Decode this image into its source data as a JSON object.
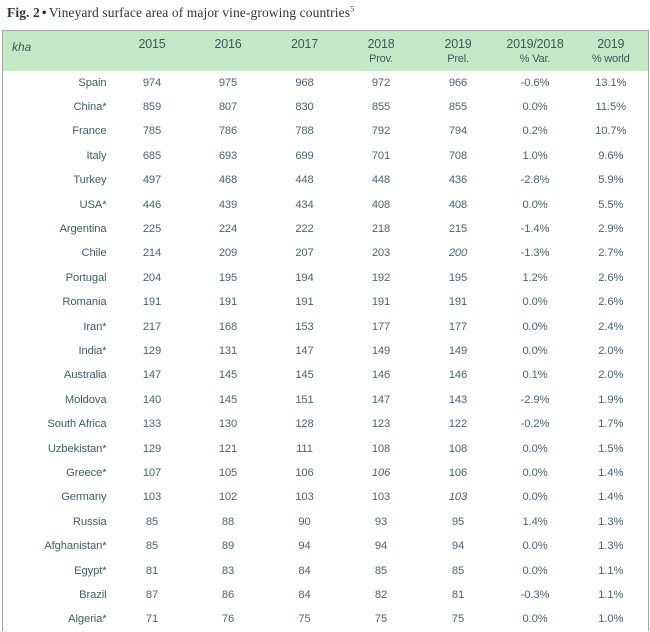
{
  "title": {
    "fig_label": "Fig. 2",
    "bullet": "•",
    "text": "Vineyard surface area of major vine-growing countries",
    "footnote_mark": "5"
  },
  "colors": {
    "header_bg": "#c5e8c6",
    "header_text": "#3b5a58",
    "body_text": "#4c6470",
    "border": "#a2a7a2"
  },
  "chart_data": {
    "type": "table",
    "title": "Fig. 2 • Vineyard surface area of major vine-growing countries",
    "unit_label": "kha",
    "header": [
      {
        "line1": "2015",
        "line2": ""
      },
      {
        "line1": "2016",
        "line2": ""
      },
      {
        "line1": "2017",
        "line2": ""
      },
      {
        "line1": "2018",
        "line2": "Prov."
      },
      {
        "line1": "2019",
        "line2": "Prel."
      },
      {
        "line1": "2019/2018",
        "line2": "% Var."
      },
      {
        "line1": "2019",
        "line2": "% world"
      }
    ],
    "rows": [
      {
        "country": "Spain",
        "values": [
          "974",
          "975",
          "968",
          "972",
          "966",
          "-0.6%",
          "13.1%"
        ],
        "italic": []
      },
      {
        "country": "China*",
        "values": [
          "859",
          "807",
          "830",
          "855",
          "855",
          "0.0%",
          "11.5%"
        ],
        "italic": []
      },
      {
        "country": "France",
        "values": [
          "785",
          "786",
          "788",
          "792",
          "794",
          "0.2%",
          "10.7%"
        ],
        "italic": []
      },
      {
        "country": "Italy",
        "values": [
          "685",
          "693",
          "699",
          "701",
          "708",
          "1.0%",
          "9.6%"
        ],
        "italic": []
      },
      {
        "country": "Turkey",
        "values": [
          "497",
          "468",
          "448",
          "448",
          "436",
          "-2.8%",
          "5.9%"
        ],
        "italic": []
      },
      {
        "country": "USA*",
        "values": [
          "446",
          "439",
          "434",
          "408",
          "408",
          "0.0%",
          "5.5%"
        ],
        "italic": []
      },
      {
        "country": "Argentina",
        "values": [
          "225",
          "224",
          "222",
          "218",
          "215",
          "-1.4%",
          "2.9%"
        ],
        "italic": []
      },
      {
        "country": "Chile",
        "values": [
          "214",
          "209",
          "207",
          "203",
          "200",
          "-1.3%",
          "2.7%"
        ],
        "italic": [
          4
        ]
      },
      {
        "country": "Portugal",
        "values": [
          "204",
          "195",
          "194",
          "192",
          "195",
          "1.2%",
          "2.6%"
        ],
        "italic": []
      },
      {
        "country": "Romania",
        "values": [
          "191",
          "191",
          "191",
          "191",
          "191",
          "0.0%",
          "2.6%"
        ],
        "italic": []
      },
      {
        "country": "Iran*",
        "values": [
          "217",
          "168",
          "153",
          "177",
          "177",
          "0.0%",
          "2.4%"
        ],
        "italic": []
      },
      {
        "country": "India*",
        "values": [
          "129",
          "131",
          "147",
          "149",
          "149",
          "0.0%",
          "2.0%"
        ],
        "italic": []
      },
      {
        "country": "Australia",
        "values": [
          "147",
          "145",
          "145",
          "146",
          "146",
          "0.1%",
          "2.0%"
        ],
        "italic": []
      },
      {
        "country": "Moldova",
        "values": [
          "140",
          "145",
          "151",
          "147",
          "143",
          "-2.9%",
          "1.9%"
        ],
        "italic": []
      },
      {
        "country": "South Africa",
        "values": [
          "133",
          "130",
          "128",
          "123",
          "122",
          "-0.2%",
          "1.7%"
        ],
        "italic": []
      },
      {
        "country": "Uzbekistan*",
        "values": [
          "129",
          "121",
          "111",
          "108",
          "108",
          "0.0%",
          "1.5%"
        ],
        "italic": []
      },
      {
        "country": "Greece*",
        "values": [
          "107",
          "105",
          "106",
          "106",
          "106",
          "0.0%",
          "1.4%"
        ],
        "italic": [
          3
        ]
      },
      {
        "country": "Germany",
        "values": [
          "103",
          "102",
          "103",
          "103",
          "103",
          "0.0%",
          "1.4%"
        ],
        "italic": [
          4
        ]
      },
      {
        "country": "Russia",
        "values": [
          "85",
          "88",
          "90",
          "93",
          "95",
          "1.4%",
          "1.3%"
        ],
        "italic": []
      },
      {
        "country": "Afghanistan*",
        "values": [
          "85",
          "89",
          "94",
          "94",
          "94",
          "0.0%",
          "1.3%"
        ],
        "italic": []
      },
      {
        "country": "Egypt*",
        "values": [
          "81",
          "83",
          "84",
          "85",
          "85",
          "0.0%",
          "1.1%"
        ],
        "italic": []
      },
      {
        "country": "Brazil",
        "values": [
          "87",
          "86",
          "84",
          "82",
          "81",
          "-0.3%",
          "1.1%"
        ],
        "italic": []
      },
      {
        "country": "Algeria*",
        "values": [
          "71",
          "76",
          "75",
          "75",
          "75",
          "0.0%",
          "1.0%"
        ],
        "italic": []
      }
    ]
  }
}
